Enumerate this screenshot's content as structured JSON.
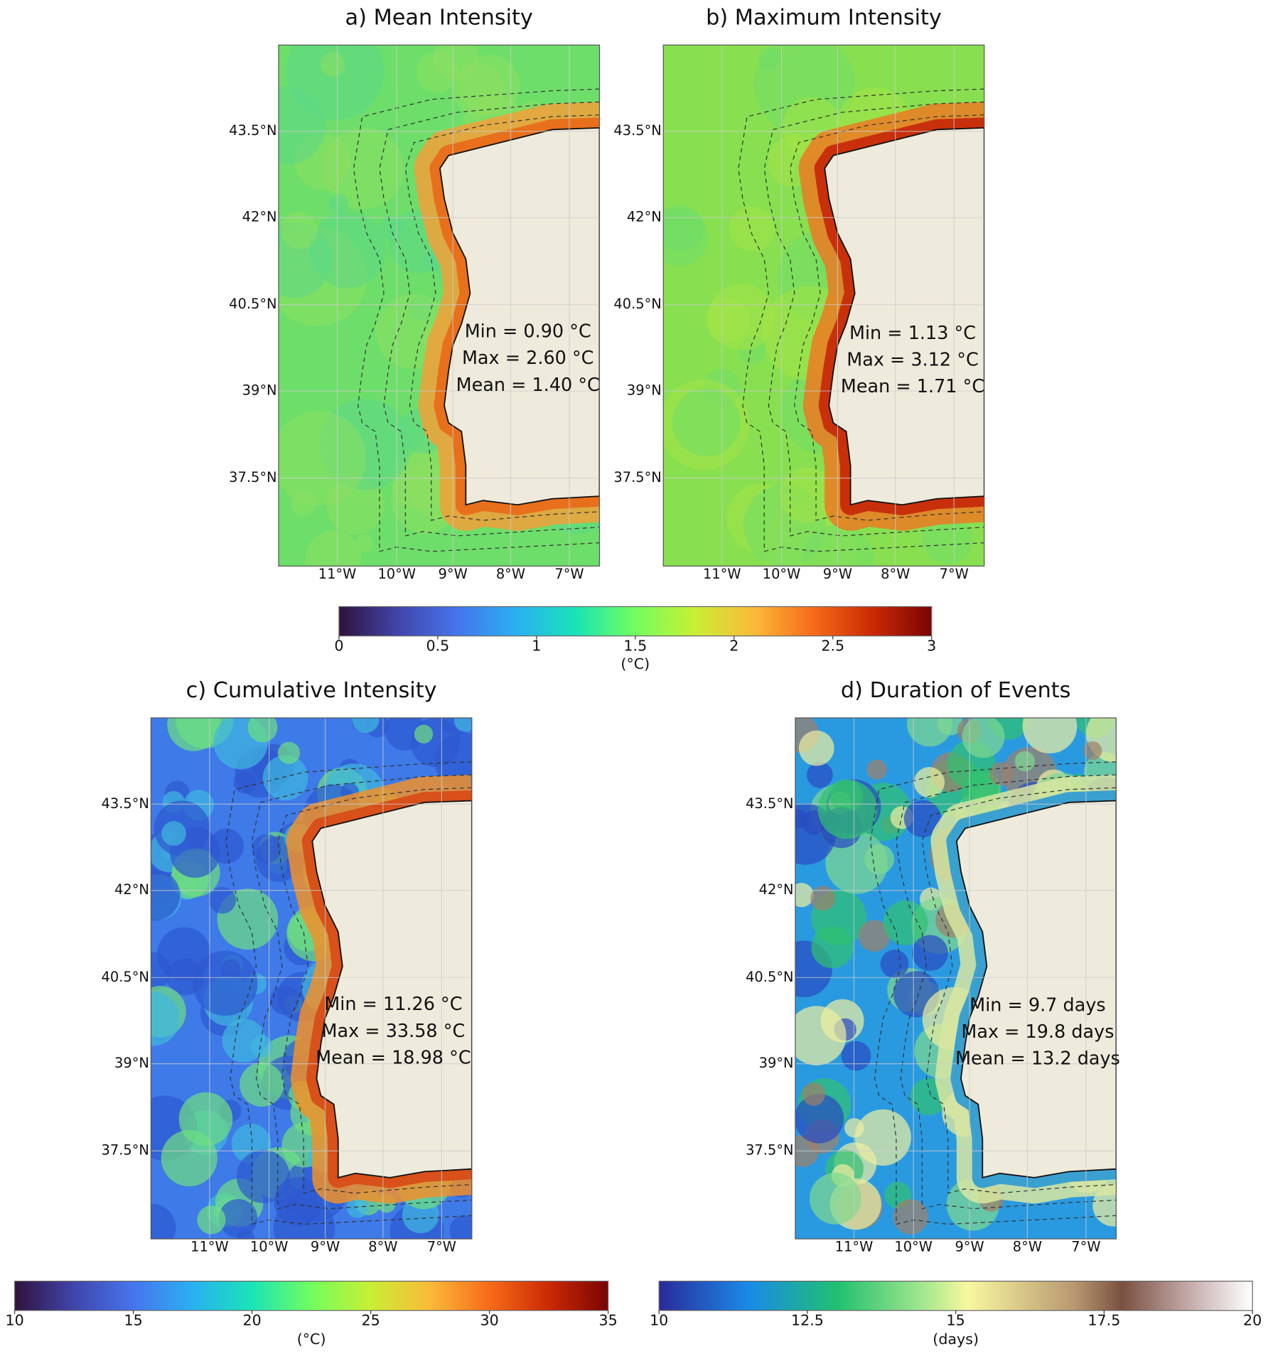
{
  "panels": [
    {
      "title": "a) Mean Intensity",
      "lat_labels": [
        "43.5°N",
        "42°N",
        "40.5°N",
        "39°N",
        "37.5°N"
      ],
      "lon_labels": [
        "11°W",
        "10°W",
        "9°W",
        "8°W",
        "7°W"
      ],
      "stats": [
        "Min = 0.90 °C",
        "Max = 2.60 °C",
        "Mean = 1.40 °C"
      ]
    },
    {
      "title": "b) Maximum Intensity",
      "lat_labels": [
        "43.5°N",
        "42°N",
        "40.5°N",
        "39°N",
        "37.5°N"
      ],
      "lon_labels": [
        "11°W",
        "10°W",
        "9°W",
        "8°W",
        "7°W"
      ],
      "stats": [
        "Min = 1.13 °C",
        "Max = 3.12 °C",
        "Mean = 1.71 °C"
      ]
    },
    {
      "title": "c) Cumulative Intensity",
      "lat_labels": [
        "43.5°N",
        "42°N",
        "40.5°N",
        "39°N",
        "37.5°N"
      ],
      "lon_labels": [
        "11°W",
        "10°W",
        "9°W",
        "8°W",
        "7°W"
      ],
      "stats": [
        "Min = 11.26 °C",
        "Max = 33.58 °C",
        "Mean = 18.98 °C"
      ]
    },
    {
      "title": "d) Duration of Events",
      "lat_labels": [
        "43.5°N",
        "42°N",
        "40.5°N",
        "39°N",
        "37.5°N"
      ],
      "lon_labels": [
        "11°W",
        "10°W",
        "9°W",
        "8°W",
        "7°W"
      ],
      "stats": [
        "Min = 9.7 days",
        "Max = 19.8 days",
        "Mean = 13.2 days"
      ]
    }
  ],
  "colorbars": [
    {
      "ticks": [
        0,
        0.5,
        1,
        1.5,
        2,
        2.5,
        3
      ],
      "label": "(°C)"
    },
    {
      "ticks": [
        10,
        15,
        20,
        25,
        30,
        35
      ],
      "label": "(°C)"
    },
    {
      "ticks": [
        10,
        12.5,
        15,
        17.5,
        20
      ],
      "label": "(days)"
    }
  ]
}
